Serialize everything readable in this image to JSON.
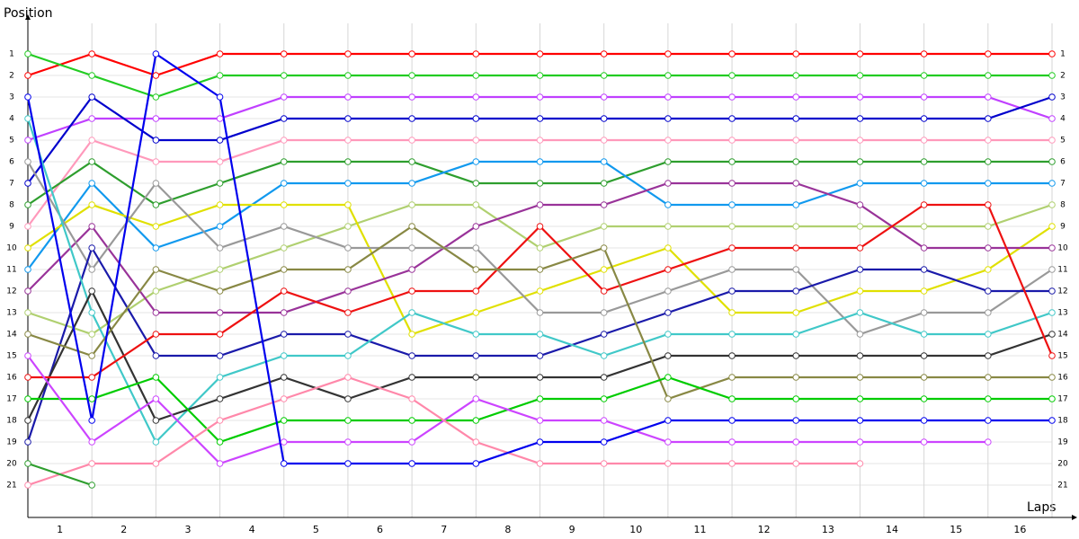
{
  "chart_data": {
    "type": "line",
    "y_label": "Position",
    "x_label": "Laps",
    "x": [
      0,
      1,
      2,
      3,
      4,
      5,
      6,
      7,
      8,
      9,
      10,
      11,
      12,
      13,
      14,
      15,
      16
    ],
    "xlim": [
      0,
      16
    ],
    "xticks": [
      {
        "value": 0.5,
        "label": "1"
      },
      {
        "value": 1.5,
        "label": "2"
      },
      {
        "value": 2.5,
        "label": "3"
      },
      {
        "value": 3.5,
        "label": "4"
      },
      {
        "value": 4.5,
        "label": "5"
      },
      {
        "value": 5.5,
        "label": "6"
      },
      {
        "value": 6.5,
        "label": "7"
      },
      {
        "value": 7.5,
        "label": "8"
      },
      {
        "value": 8.5,
        "label": "9"
      },
      {
        "value": 9.5,
        "label": "10"
      },
      {
        "value": 10.5,
        "label": "11"
      },
      {
        "value": 11.5,
        "label": "12"
      },
      {
        "value": 12.5,
        "label": "13"
      },
      {
        "value": 13.5,
        "label": "14"
      },
      {
        "value": 14.5,
        "label": "15"
      },
      {
        "value": 15.5,
        "label": "16"
      }
    ],
    "ylim": [
      22.5,
      0
    ],
    "y_inverted": true,
    "yticks": [
      1,
      2,
      3,
      4,
      5,
      6,
      7,
      8,
      9,
      10,
      11,
      12,
      13,
      14,
      15,
      16,
      17,
      18,
      19,
      20,
      21
    ],
    "grid": true,
    "series": [
      {
        "color": "#ff0000",
        "values": [
          2,
          1,
          2,
          1,
          1,
          1,
          1,
          1,
          1,
          1,
          1,
          1,
          1,
          1,
          1,
          1,
          1
        ]
      },
      {
        "color": "#22cc22",
        "values": [
          1,
          2,
          3,
          2,
          2,
          2,
          2,
          2,
          2,
          2,
          2,
          2,
          2,
          2,
          2,
          2,
          2
        ]
      },
      {
        "color": "#c040ff",
        "values": [
          5,
          4,
          4,
          4,
          3,
          3,
          3,
          3,
          3,
          3,
          3,
          3,
          3,
          3,
          3,
          3,
          4
        ]
      },
      {
        "color": "#0000cc",
        "values": [
          7,
          3,
          5,
          5,
          4,
          4,
          4,
          4,
          4,
          4,
          4,
          4,
          4,
          4,
          4,
          4,
          3
        ]
      },
      {
        "color": "#ff99bb",
        "values": [
          9,
          5,
          6,
          6,
          5,
          5,
          5,
          5,
          5,
          5,
          5,
          5,
          5,
          5,
          5,
          5,
          5
        ]
      },
      {
        "color": "#2e9e2e",
        "values": [
          8,
          6,
          8,
          7,
          6,
          6,
          6,
          7,
          7,
          7,
          6,
          6,
          6,
          6,
          6,
          6,
          6
        ]
      },
      {
        "color": "#1199ee",
        "values": [
          11,
          7,
          10,
          9,
          7,
          7,
          7,
          6,
          6,
          6,
          8,
          8,
          8,
          7,
          7,
          7,
          7
        ]
      },
      {
        "color": "#b0d070",
        "values": [
          13,
          14,
          12,
          11,
          10,
          9,
          8,
          8,
          10,
          9,
          9,
          9,
          9,
          9,
          9,
          9,
          8
        ]
      },
      {
        "color": "#e0e000",
        "values": [
          10,
          8,
          9,
          8,
          8,
          8,
          14,
          13,
          12,
          11,
          10,
          13,
          13,
          12,
          12,
          11,
          9
        ]
      },
      {
        "color": "#993399",
        "values": [
          12,
          9,
          13,
          13,
          13,
          12,
          11,
          9,
          8,
          8,
          7,
          7,
          7,
          8,
          10,
          10,
          10
        ]
      },
      {
        "color": "#999999",
        "values": [
          6,
          11,
          7,
          10,
          9,
          10,
          10,
          10,
          13,
          13,
          12,
          11,
          11,
          14,
          13,
          13,
          11
        ]
      },
      {
        "color": "#1a1aaa",
        "values": [
          19,
          10,
          15,
          15,
          14,
          14,
          15,
          15,
          15,
          14,
          13,
          12,
          12,
          11,
          11,
          12,
          12
        ]
      },
      {
        "color": "#40c8c8",
        "values": [
          4,
          13,
          19,
          16,
          15,
          15,
          13,
          14,
          14,
          15,
          14,
          14,
          14,
          13,
          14,
          14,
          13
        ]
      },
      {
        "color": "#333333",
        "values": [
          18,
          12,
          18,
          17,
          16,
          17,
          16,
          16,
          16,
          16,
          15,
          15,
          15,
          15,
          15,
          15,
          14
        ]
      },
      {
        "color": "#ee1111",
        "values": [
          16,
          16,
          14,
          14,
          12,
          13,
          12,
          12,
          9,
          12,
          11,
          10,
          10,
          10,
          8,
          8,
          15
        ]
      },
      {
        "color": "#888844",
        "values": [
          14,
          15,
          11,
          12,
          11,
          11,
          9,
          11,
          11,
          10,
          17,
          16,
          16,
          16,
          16,
          16,
          16
        ]
      },
      {
        "color": "#00cc00",
        "values": [
          17,
          17,
          16,
          19,
          18,
          18,
          18,
          18,
          17,
          17,
          16,
          17,
          17,
          17,
          17,
          17,
          17
        ]
      },
      {
        "color": "#cc44ff",
        "values": [
          15,
          19,
          17,
          20,
          19,
          19,
          19,
          17,
          18,
          18,
          19,
          19,
          19,
          19,
          19,
          19,
          null
        ]
      },
      {
        "color": "#ff88aa",
        "values": [
          21,
          20,
          20,
          18,
          17,
          16,
          17,
          19,
          20,
          20,
          20,
          20,
          20,
          20,
          null,
          null,
          null
        ]
      },
      {
        "color": "#2e9e2e",
        "values": [
          20,
          21,
          null,
          null,
          null,
          null,
          null,
          null,
          null,
          null,
          null,
          null,
          null,
          null,
          null,
          null,
          null
        ]
      },
      {
        "color": "#0000ee",
        "values": [
          3,
          18,
          1,
          3,
          20,
          20,
          20,
          20,
          19,
          19,
          18,
          18,
          18,
          18,
          18,
          18,
          18
        ]
      }
    ]
  }
}
